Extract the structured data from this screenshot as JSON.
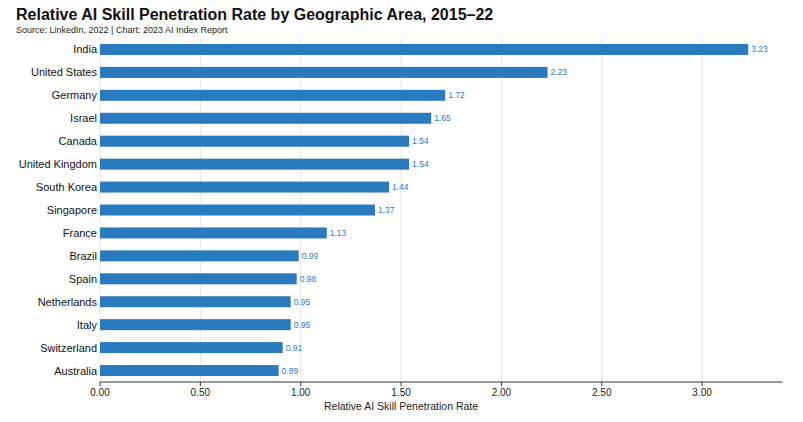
{
  "chart_data": {
    "type": "bar",
    "orientation": "horizontal",
    "title": "Relative AI Skill Penetration Rate by Geographic Area, 2015–22",
    "subtitle": "Source: LinkedIn, 2022 | Chart: 2023 AI Index Report",
    "x_label": "Relative AI Skill Penetration Rate",
    "categories": [
      "India",
      "United States",
      "Germany",
      "Israel",
      "Canada",
      "United Kingdom",
      "South Korea",
      "Singapore",
      "France",
      "Brazil",
      "Spain",
      "Netherlands",
      "Italy",
      "Switzerland",
      "Australia"
    ],
    "values": [
      3.23,
      2.23,
      1.72,
      1.65,
      1.54,
      1.54,
      1.44,
      1.37,
      1.13,
      0.99,
      0.98,
      0.95,
      0.95,
      0.91,
      0.89
    ],
    "color": "#2a7abf",
    "xlim": [
      0,
      3.4
    ],
    "xticks": [
      {
        "value": 0,
        "label": "0.00"
      },
      {
        "value": 0.5,
        "label": "0.50"
      },
      {
        "value": 1,
        "label": "1.00"
      },
      {
        "value": 1.5,
        "label": "1.50"
      },
      {
        "value": 2,
        "label": "2.00"
      },
      {
        "value": 2.5,
        "label": "2.50"
      },
      {
        "value": 3,
        "label": "3.00"
      }
    ],
    "grid": true,
    "data_labels": true
  }
}
